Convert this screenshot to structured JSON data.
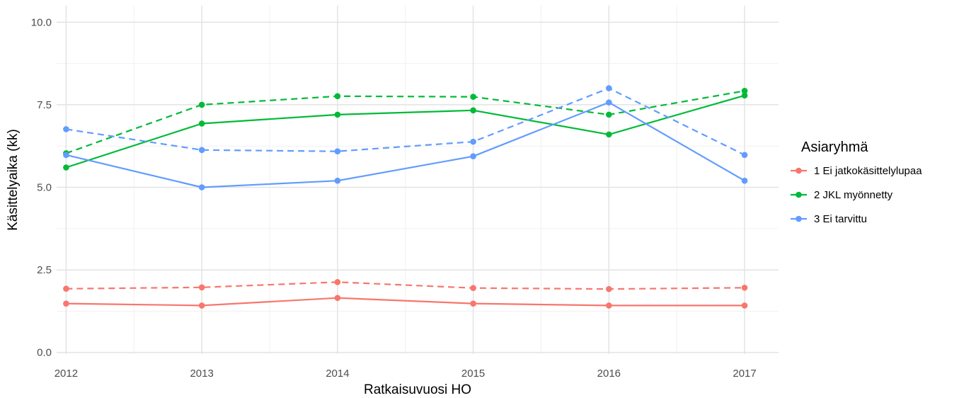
{
  "chart_data": {
    "type": "line",
    "title": "",
    "xlabel": "Ratkaisuvuosi HO",
    "ylabel": "Käsittelyaika (kk)",
    "x": [
      2012,
      2013,
      2014,
      2015,
      2016,
      2017
    ],
    "x_tick_labels": [
      "2012",
      "2013",
      "2014",
      "2015",
      "2016",
      "2017"
    ],
    "y_ticks": [
      0.0,
      2.5,
      5.0,
      7.5,
      10.0
    ],
    "y_tick_labels": [
      "0.0",
      "2.5",
      "5.0",
      "7.5",
      "10.0"
    ],
    "xlim": [
      2011.93,
      2017.25
    ],
    "ylim": [
      -0.05,
      10.5
    ],
    "grid": true,
    "legend": {
      "title": "Asiaryhmä",
      "position": "right",
      "entries": [
        {
          "label": "1 Ei jatkokäsittelylupaa",
          "color": "#F8766D"
        },
        {
          "label": "2 JKL myönnetty",
          "color": "#00BA38"
        },
        {
          "label": "3 Ei tarvittu",
          "color": "#619CFF"
        }
      ]
    },
    "series": [
      {
        "group": 0,
        "linetype": "solid",
        "color": "#F8766D",
        "values": [
          1.48,
          1.42,
          1.65,
          1.48,
          1.42,
          1.42
        ]
      },
      {
        "group": 0,
        "linetype": "dashed",
        "color": "#F8766D",
        "values": [
          1.93,
          1.97,
          2.13,
          1.95,
          1.92,
          1.96
        ]
      },
      {
        "group": 1,
        "linetype": "solid",
        "color": "#00BA38",
        "values": [
          5.6,
          6.93,
          7.2,
          7.33,
          6.6,
          7.78
        ]
      },
      {
        "group": 1,
        "linetype": "dashed",
        "color": "#00BA38",
        "values": [
          6.03,
          7.5,
          7.76,
          7.74,
          7.2,
          7.92
        ]
      },
      {
        "group": 2,
        "linetype": "solid",
        "color": "#619CFF",
        "values": [
          5.98,
          5.0,
          5.2,
          5.94,
          7.57,
          5.2
        ]
      },
      {
        "group": 2,
        "linetype": "dashed",
        "color": "#619CFF",
        "values": [
          6.76,
          6.13,
          6.09,
          6.38,
          8.0,
          5.98
        ]
      }
    ]
  }
}
